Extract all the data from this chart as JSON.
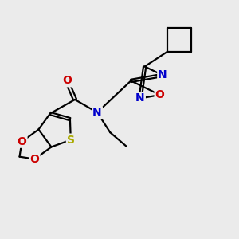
{
  "background_color": "#ebebeb",
  "atom_colors": {
    "C": "#000000",
    "N": "#0000cc",
    "O": "#cc0000",
    "S": "#aaaa00",
    "H": "#000000"
  },
  "bond_color": "#000000",
  "bond_width": 1.6,
  "dbo": 0.055,
  "font_size_atom": 10,
  "figsize": [
    3.0,
    3.0
  ],
  "dpi": 100
}
